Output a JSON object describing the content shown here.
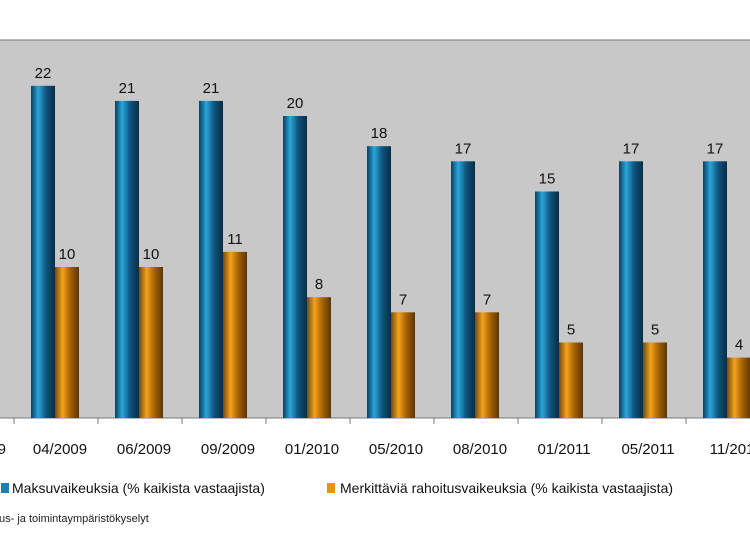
{
  "chart_data": {
    "type": "bar",
    "title": "",
    "xlabel": "",
    "ylabel": "",
    "categories": [
      "04/2009",
      "06/2009",
      "09/2009",
      "01/2010",
      "05/2010",
      "08/2010",
      "01/2011",
      "05/2011",
      "11/201"
    ],
    "clipped_left_category": "9",
    "series": [
      {
        "name": "Maksuvaikeuksia (% kaikista vastaajista)",
        "values": [
          22,
          21,
          21,
          20,
          18,
          17,
          15,
          17,
          17
        ],
        "color": "#1f7fb0"
      },
      {
        "name": "Merkittäviä rahoitusvaikeuksia (% kaikista vastaajista)",
        "values": [
          10,
          10,
          11,
          8,
          7,
          7,
          5,
          5,
          4
        ],
        "color": "#e8920c"
      }
    ],
    "ylim": [
      0,
      24
    ],
    "grid": false,
    "plot_background": "#c8c8c8",
    "legend_position": "bottom",
    "source_note": "us- ja toimintaympäristökyselyt"
  }
}
